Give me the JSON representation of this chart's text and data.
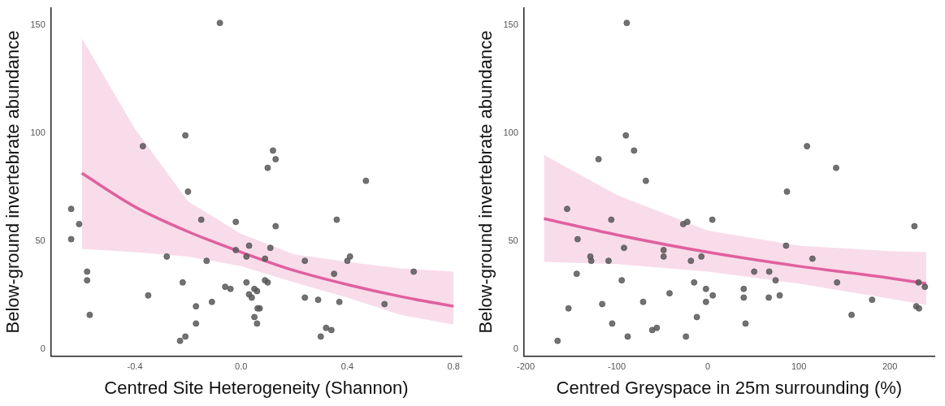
{
  "chart_data": [
    {
      "type": "scatter",
      "xlabel": "Centred Site Heterogeneity (Shannon)",
      "ylabel": "Below-ground invertebrate abundance",
      "xlim": [
        -0.716,
        0.83
      ],
      "ylim": [
        -3,
        158
      ],
      "xticks": [
        -0.4,
        {
          "value": 0,
          "label": "0.0"
        },
        0.4,
        0.8
      ],
      "yticks": [
        0,
        50,
        100,
        150
      ],
      "grid": false,
      "legend": false,
      "series": [
        {
          "marker": "circle",
          "color": "#595959",
          "x": [
            -0.64,
            -0.64,
            -0.61,
            -0.58,
            -0.58,
            -0.57,
            -0.37,
            -0.35,
            -0.28,
            -0.23,
            -0.22,
            -0.21,
            -0.21,
            -0.2,
            -0.17,
            -0.17,
            -0.15,
            -0.13,
            -0.11,
            -0.08,
            -0.06,
            -0.04,
            -0.02,
            -0.02,
            0.02,
            0.02,
            0.03,
            0.03,
            0.04,
            0.05,
            0.05,
            0.06,
            0.06,
            0.062,
            0.07,
            0.09,
            0.09,
            0.1,
            0.1,
            0.11,
            0.12,
            0.13,
            0.13,
            0.24,
            0.24,
            0.29,
            0.3,
            0.32,
            0.34,
            0.35,
            0.36,
            0.37,
            0.4,
            0.41,
            0.47,
            0.54,
            0.65
          ],
          "values": [
            65,
            51,
            58,
            36,
            32,
            16,
            94,
            25,
            43,
            4,
            31,
            99,
            6,
            73,
            20,
            12,
            60,
            41,
            22,
            151,
            29,
            28,
            59,
            46,
            31,
            43,
            48,
            25.5,
            24,
            15,
            28,
            12,
            27,
            19,
            19,
            42,
            32,
            31,
            84,
            47,
            92,
            57,
            88,
            41,
            24,
            23,
            6,
            10,
            9,
            35,
            60,
            22,
            41,
            43,
            78,
            21,
            36
          ]
        },
        {
          "type": "line",
          "marker": "none",
          "color": "#e0609e",
          "line_style": "solid",
          "x": [
            -0.6,
            -0.4,
            -0.2,
            0,
            0.2,
            0.4,
            0.6,
            0.8
          ],
          "values": [
            81.5,
            66,
            54.5,
            45,
            36.5,
            30,
            24.5,
            20
          ],
          "lower": [
            46.5,
            45,
            43,
            38.5,
            31,
            24,
            16,
            11.5
          ],
          "upper": [
            144,
            102,
            68.5,
            53.5,
            44,
            40.5,
            37.5,
            36
          ]
        }
      ]
    },
    {
      "type": "scatter",
      "xlabel": "Centred Greyspace in 25m surrounding (%)",
      "ylabel": "Below-ground invertebrate abundance",
      "xlim": [
        -202,
        249
      ],
      "ylim": [
        -3,
        158
      ],
      "xticks": [
        -200,
        -100,
        0,
        100,
        200
      ],
      "yticks": [
        0,
        50,
        100,
        150
      ],
      "grid": false,
      "legend": false,
      "series": [
        {
          "marker": "circle",
          "color": "#595959",
          "x": [
            -154.5,
            -106,
            -143,
            -92,
            -48.5,
            -48.5,
            -129,
            -128,
            -109,
            -27,
            -22.5,
            5,
            -7,
            -18.5,
            86,
            115,
            227,
            -144,
            -94.5,
            -153,
            -116,
            -105,
            -88,
            -165,
            -71,
            -42,
            -61,
            -56,
            -24,
            -15,
            -2,
            -2,
            5.5,
            -12,
            39.5,
            39.5,
            41.5,
            51,
            67.5,
            74.5,
            67,
            79,
            142,
            158,
            180.5,
            231.5,
            238.5,
            229,
            232,
            -89,
            -90,
            -81,
            -120,
            -68,
            109,
            141,
            87
          ],
          "values": [
            65,
            60,
            51,
            47,
            46,
            43,
            43,
            41,
            41,
            58,
            59,
            60,
            43,
            41,
            48,
            42,
            57,
            35,
            32,
            19,
            21,
            12,
            6,
            4,
            22,
            26,
            9,
            10,
            6,
            31,
            28,
            22,
            25,
            15,
            28,
            24,
            12,
            36,
            36,
            32,
            24,
            25,
            31,
            16,
            23,
            31,
            29,
            20,
            19,
            151,
            99,
            92,
            88,
            78,
            94,
            84,
            73
          ]
        },
        {
          "type": "line",
          "marker": "none",
          "color": "#e0609e",
          "line_style": "solid",
          "x": [
            -180,
            -100,
            0,
            100,
            200,
            240
          ],
          "values": [
            60.5,
            53,
            45,
            38.5,
            33,
            30.5
          ],
          "lower": [
            40.5,
            39.5,
            36,
            30.5,
            23.5,
            20.5
          ],
          "upper": [
            90,
            71.5,
            55,
            48,
            45.5,
            45
          ]
        }
      ]
    }
  ]
}
